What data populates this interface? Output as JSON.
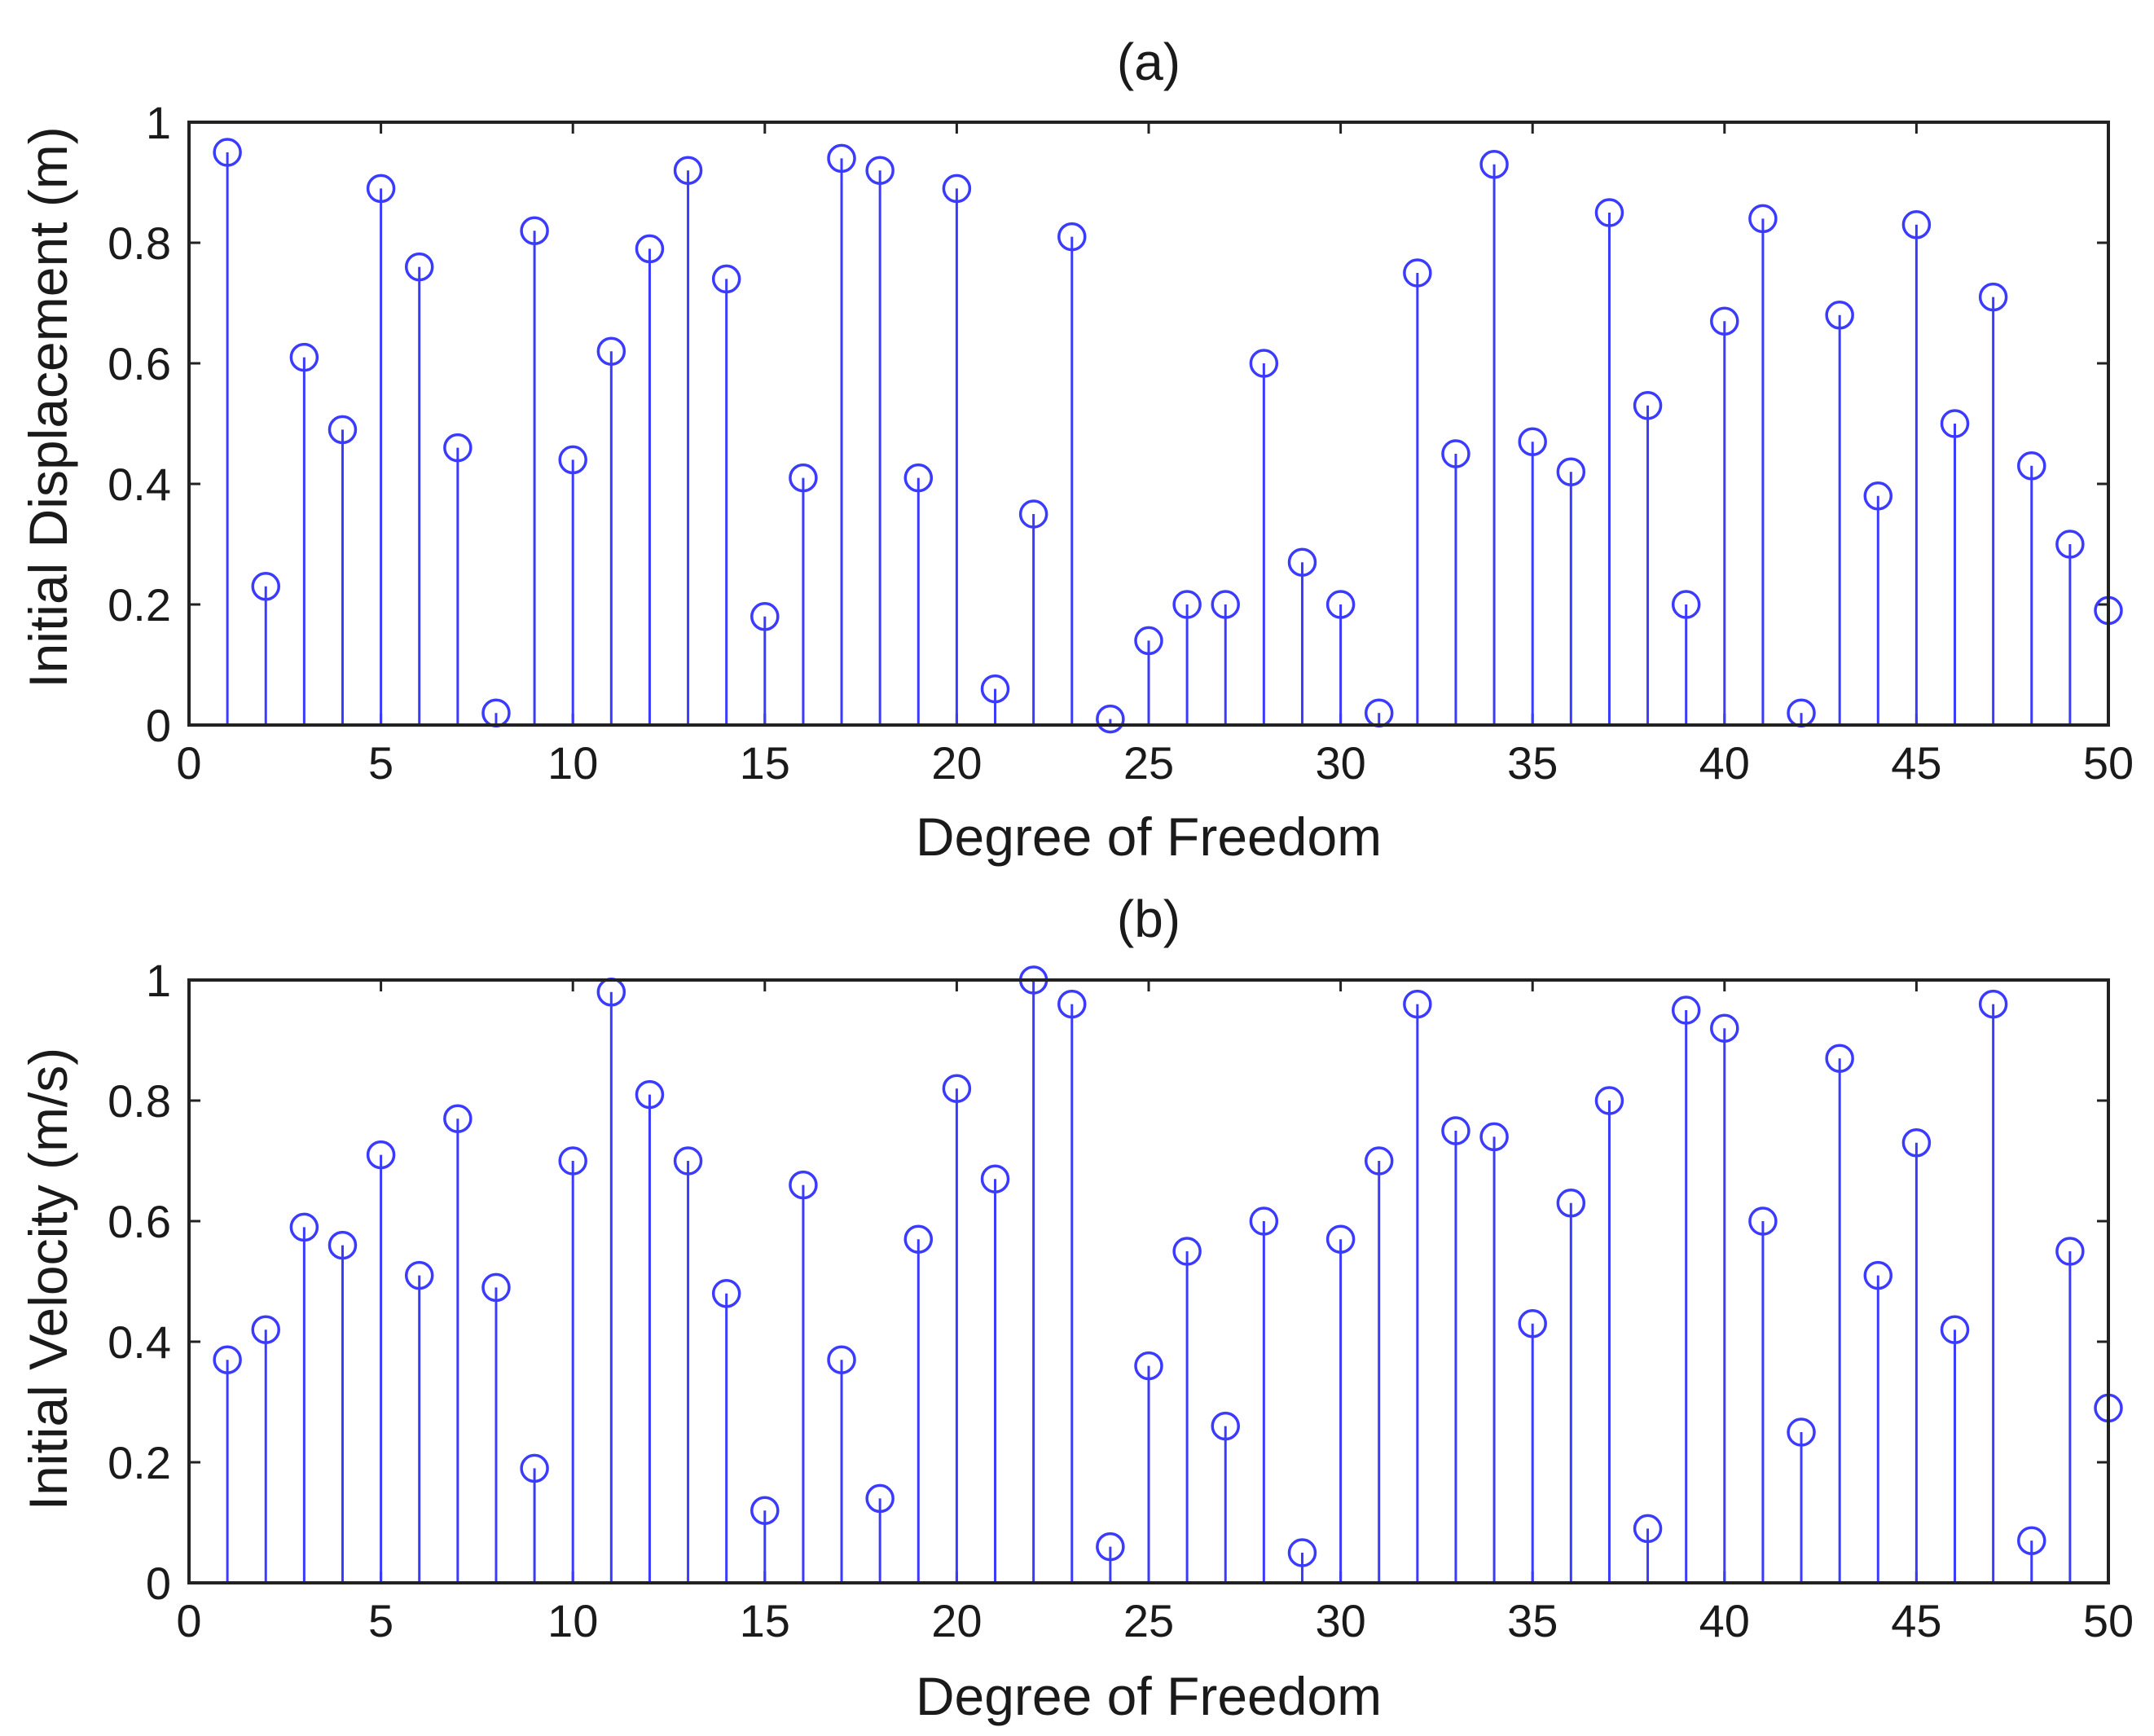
{
  "colors": {
    "stem": "#3b3bff",
    "axis": "#222222",
    "background": "#ffffff"
  },
  "chart_data": [
    {
      "type": "stem",
      "title": "(a)",
      "xlabel": "Degree of Freedom",
      "ylabel": "Initial Displacement (m)",
      "xlim": [
        0,
        50
      ],
      "ylim": [
        0,
        1
      ],
      "xticks": [
        "0",
        "5",
        "10",
        "15",
        "20",
        "25",
        "30",
        "35",
        "40",
        "45",
        "50"
      ],
      "yticks": [
        "0",
        "0.2",
        "0.4",
        "0.6",
        "0.8",
        "1"
      ],
      "grid": false,
      "x": [
        1,
        2,
        3,
        4,
        5,
        6,
        7,
        8,
        9,
        10,
        11,
        12,
        13,
        14,
        15,
        16,
        17,
        18,
        19,
        20,
        21,
        22,
        23,
        24,
        25,
        26,
        27,
        28,
        29,
        30,
        31,
        32,
        33,
        34,
        35,
        36,
        37,
        38,
        39,
        40,
        41,
        42,
        43,
        44,
        45,
        46,
        47,
        48,
        49,
        50
      ],
      "values": [
        0.95,
        0.23,
        0.61,
        0.49,
        0.89,
        0.76,
        0.46,
        0.02,
        0.82,
        0.44,
        0.62,
        0.79,
        0.92,
        0.74,
        0.18,
        0.41,
        0.94,
        0.92,
        0.41,
        0.89,
        0.06,
        0.35,
        0.81,
        0.01,
        0.14,
        0.2,
        0.2,
        0.6,
        0.27,
        0.2,
        0.02,
        0.75,
        0.45,
        0.93,
        0.47,
        0.42,
        0.85,
        0.53,
        0.2,
        0.67,
        0.84,
        0.02,
        0.68,
        0.38,
        0.83,
        0.5,
        0.71,
        0.43,
        0.3,
        0.19
      ]
    },
    {
      "type": "stem",
      "title": "(b)",
      "xlabel": "Degree of Freedom",
      "ylabel": "Initial Velocity (m/s)",
      "xlim": [
        0,
        50
      ],
      "ylim": [
        0,
        1
      ],
      "xticks": [
        "0",
        "5",
        "10",
        "15",
        "20",
        "25",
        "30",
        "35",
        "40",
        "45",
        "50"
      ],
      "yticks": [
        "0",
        "0.2",
        "0.4",
        "0.6",
        "0.8",
        "1"
      ],
      "grid": false,
      "x": [
        1,
        2,
        3,
        4,
        5,
        6,
        7,
        8,
        9,
        10,
        11,
        12,
        13,
        14,
        15,
        16,
        17,
        18,
        19,
        20,
        21,
        22,
        23,
        24,
        25,
        26,
        27,
        28,
        29,
        30,
        31,
        32,
        33,
        34,
        35,
        36,
        37,
        38,
        39,
        40,
        41,
        42,
        43,
        44,
        45,
        46,
        47,
        48,
        49,
        50
      ],
      "values": [
        0.37,
        0.42,
        0.59,
        0.56,
        0.71,
        0.51,
        0.77,
        0.49,
        0.19,
        0.7,
        0.98,
        0.81,
        0.7,
        0.48,
        0.12,
        0.66,
        0.37,
        0.14,
        0.57,
        0.82,
        0.67,
        1.0,
        0.96,
        0.06,
        0.36,
        0.55,
        0.26,
        0.6,
        0.05,
        0.57,
        0.7,
        0.96,
        0.75,
        0.74,
        0.43,
        0.63,
        0.8,
        0.09,
        0.95,
        0.92,
        0.6,
        0.25,
        0.87,
        0.51,
        0.73,
        0.42,
        0.96,
        0.07,
        0.55,
        0.29
      ]
    }
  ]
}
